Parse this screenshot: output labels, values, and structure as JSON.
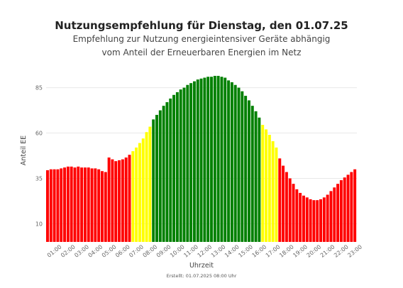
{
  "chart_data": {
    "type": "bar",
    "title": "Nutzungsempfehlung für Dienstag, den 01.07.25",
    "subtitle_lines": [
      "Empfehlung zur Nutzung energieintensiver Geräte abhängig",
      "vom Anteil der Erneuerbaren Energien im Netz"
    ],
    "xlabel": "Uhrzeit",
    "ylabel": "Anteil EE",
    "yticks": [
      10,
      35,
      60,
      85
    ],
    "ylim": [
      0,
      95
    ],
    "grid": true,
    "legend": "none",
    "xtick_labels": [
      "01:00",
      "02:00",
      "03:00",
      "04:00",
      "05:00",
      "06:00",
      "07:00",
      "08:00",
      "09:00",
      "10:00",
      "11:00",
      "12:00",
      "13:00",
      "14:00",
      "15:00",
      "16:00",
      "17:00",
      "18:00",
      "19:00",
      "20:00",
      "21:00",
      "22:00",
      "23:00"
    ],
    "category_colors": {
      "red": "#ff0000",
      "yellow": "#ffff00",
      "green": "#008000"
    },
    "values": [
      39.5,
      40,
      40,
      40,
      40.5,
      41,
      41.5,
      41.5,
      41,
      41.5,
      41,
      41,
      41,
      40.5,
      40.5,
      40,
      39,
      38.5,
      46.5,
      45.5,
      44.5,
      45,
      45.5,
      46.5,
      48,
      50,
      52,
      54.5,
      57,
      60.5,
      63.5,
      67.5,
      70,
      72.5,
      75,
      77,
      79,
      81,
      82.5,
      84,
      85,
      86.5,
      87.5,
      88.5,
      89.5,
      90,
      90.5,
      91,
      91,
      91.5,
      91.5,
      91,
      90.5,
      89,
      88,
      86.5,
      85,
      83,
      80.5,
      78,
      75,
      72,
      68.5,
      64.5,
      62,
      59,
      55.5,
      52,
      46,
      42,
      38.5,
      35,
      32,
      29,
      27,
      25.5,
      24.5,
      23.5,
      23,
      23,
      23.5,
      24.5,
      26,
      28,
      30,
      32,
      34,
      35.5,
      37,
      38.5,
      40
    ],
    "colors": [
      "red",
      "red",
      "red",
      "red",
      "red",
      "red",
      "red",
      "red",
      "red",
      "red",
      "red",
      "red",
      "red",
      "red",
      "red",
      "red",
      "red",
      "red",
      "red",
      "red",
      "red",
      "red",
      "red",
      "red",
      "red",
      "yellow",
      "yellow",
      "yellow",
      "yellow",
      "yellow",
      "yellow",
      "green",
      "green",
      "green",
      "green",
      "green",
      "green",
      "green",
      "green",
      "green",
      "green",
      "green",
      "green",
      "green",
      "green",
      "green",
      "green",
      "green",
      "green",
      "green",
      "green",
      "green",
      "green",
      "green",
      "green",
      "green",
      "green",
      "green",
      "green",
      "green",
      "green",
      "green",
      "green",
      "yellow",
      "yellow",
      "yellow",
      "yellow",
      "yellow",
      "red",
      "red",
      "red",
      "red",
      "red",
      "red",
      "red",
      "red",
      "red",
      "red",
      "red",
      "red",
      "red",
      "red",
      "red",
      "red",
      "red",
      "red",
      "red",
      "red",
      "red",
      "red",
      "red",
      "red"
    ]
  },
  "footer": "Erstellt: 01.07.2025 08:00 Uhr"
}
